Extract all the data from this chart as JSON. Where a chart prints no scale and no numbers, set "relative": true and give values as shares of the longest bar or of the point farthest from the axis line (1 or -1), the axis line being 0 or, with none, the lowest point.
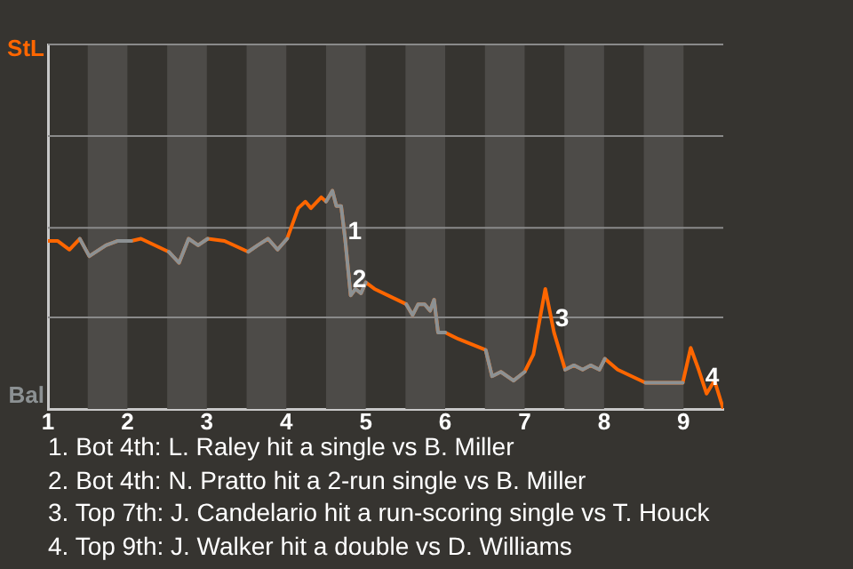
{
  "chart_data": {
    "type": "line",
    "relative": true,
    "x": [
      1.0,
      1.12,
      1.27,
      1.4,
      1.52,
      1.73,
      1.88,
      2.05,
      2.17,
      2.52,
      2.65,
      2.77,
      2.89,
      3.01,
      3.22,
      3.52,
      3.64,
      3.77,
      3.89,
      4.01,
      4.1,
      4.15,
      4.24,
      4.31,
      4.44,
      4.5,
      4.58,
      4.63,
      4.69,
      4.74,
      4.81,
      4.87,
      4.94,
      5.0,
      5.11,
      5.51,
      5.59,
      5.66,
      5.74,
      5.81,
      5.86,
      5.91,
      6.0,
      6.17,
      6.51,
      6.59,
      6.7,
      6.86,
      7.0,
      7.11,
      7.26,
      7.37,
      7.51,
      7.62,
      7.73,
      7.83,
      7.94,
      8.01,
      8.17,
      8.52,
      8.68,
      8.99,
      9.09,
      9.19,
      9.29,
      9.39,
      9.5
    ],
    "series": [
      {
        "color": "#ff6600",
        "values": [
          0.77,
          0.77,
          0.73,
          0.78,
          0.7,
          0.75,
          0.77,
          0.77,
          0.78,
          0.72,
          0.67,
          0.78,
          0.75,
          0.78,
          0.77,
          0.72,
          0.75,
          0.78,
          0.73,
          0.78,
          0.87,
          0.92,
          0.95,
          0.92,
          0.97,
          0.95,
          1,
          0.93,
          0.93,
          0.78,
          0.52,
          0.55,
          0.53,
          0.58,
          0.55,
          0.48,
          0.43,
          0.48,
          0.48,
          0.45,
          0.5,
          0.35,
          0.35,
          0.32,
          0.27,
          0.15,
          0.17,
          0.13,
          0.17,
          0.25,
          0.55,
          0.35,
          0.18,
          0.2,
          0.18,
          0.2,
          0.18,
          0.23,
          0.18,
          0.12,
          0.12,
          0.12,
          0.28,
          0.18,
          0.07,
          0.13,
          0
        ]
      },
      {
        "color": "#8c9193",
        "values": [
          null,
          null,
          null,
          0.78,
          0.7,
          0.75,
          0.77,
          0.77,
          null,
          0.72,
          0.67,
          0.78,
          0.75,
          0.78,
          null,
          0.72,
          0.75,
          0.78,
          0.73,
          0.78,
          null,
          null,
          null,
          null,
          null,
          0.95,
          1,
          0.93,
          0.93,
          0.78,
          0.52,
          0.55,
          0.53,
          0.58,
          null,
          0.48,
          0.43,
          0.48,
          0.48,
          0.45,
          0.5,
          0.35,
          0.35,
          null,
          0.27,
          0.15,
          0.17,
          0.13,
          0.17,
          null,
          null,
          null,
          0.18,
          0.2,
          0.18,
          0.2,
          0.18,
          0.23,
          null,
          0.12,
          0.12,
          0.12,
          null,
          null,
          null,
          null,
          null
        ]
      }
    ],
    "xlim": [
      1,
      9.5
    ],
    "xticks": [
      1,
      2,
      3,
      4,
      5,
      6,
      7,
      8,
      9
    ],
    "legend": false,
    "marker": "none",
    "line_style": "solid",
    "ref_lines": [
      {
        "axis": "y",
        "value": 0.42,
        "color": "#8a8a8a"
      },
      {
        "axis": "y",
        "value": 0.83,
        "color": "#8a8a8a"
      },
      {
        "axis": "y",
        "value": 1.25,
        "color": "#8a8a8a"
      },
      {
        "axis": "y",
        "value": 1.67,
        "color": "#8a8a8a"
      }
    ],
    "bands": [
      {
        "axis": "x",
        "from": 1.5,
        "to": 2,
        "color": "#4d4b48"
      },
      {
        "axis": "x",
        "from": 2.5,
        "to": 3,
        "color": "#4d4b48"
      },
      {
        "axis": "x",
        "from": 3.5,
        "to": 4,
        "color": "#4d4b48"
      },
      {
        "axis": "x",
        "from": 4.5,
        "to": 5,
        "color": "#4d4b48"
      },
      {
        "axis": "x",
        "from": 5.5,
        "to": 6,
        "color": "#4d4b48"
      },
      {
        "axis": "x",
        "from": 6.5,
        "to": 7,
        "color": "#4d4b48"
      },
      {
        "axis": "x",
        "from": 7.5,
        "to": 8,
        "color": "#4d4b48"
      },
      {
        "axis": "x",
        "from": 8.5,
        "to": 9,
        "color": "#4d4b48"
      }
    ],
    "annotations": [
      "StL",
      "Bal",
      {
        "text": "1",
        "x": 4.73,
        "y": 0.81
      },
      {
        "text": "2",
        "x": 4.79,
        "y": 0.59
      },
      {
        "text": "3",
        "x": 7.34,
        "y": 0.41
      },
      {
        "text": "4",
        "x": 9.23,
        "y": 0.14
      },
      "1. Bot 4th: L. Raley hit a single vs B. Miller",
      "2. Bot 4th: N. Pratto hit a 2-run single vs B. Miller",
      "3. Top 7th: J. Candelario hit a run-scoring single vs T. Houck",
      "4. Top 9th: J. Walker hit a double vs D. Williams"
    ]
  }
}
